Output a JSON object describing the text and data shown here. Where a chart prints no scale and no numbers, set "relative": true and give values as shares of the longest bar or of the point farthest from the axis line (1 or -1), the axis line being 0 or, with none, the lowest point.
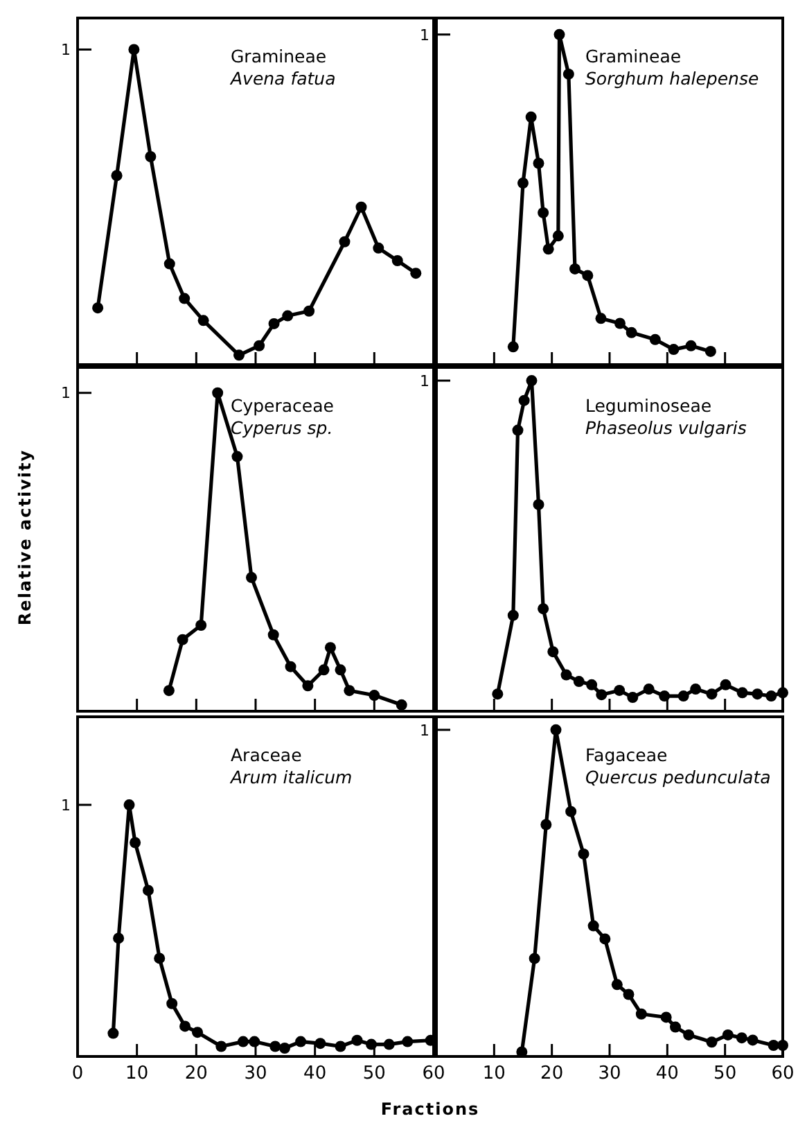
{
  "chart_data": [
    {
      "type": "line",
      "relative": true,
      "title": "Gramineae",
      "subtitle": "Avena fatua",
      "annotations": [
        "1"
      ],
      "color": "#000000",
      "marker": "circle",
      "tick_labels": "y",
      "xlim": [
        0,
        60
      ],
      "xticks": [
        0,
        10,
        20,
        30,
        40,
        50,
        60
      ],
      "x": [
        3.4,
        6.6,
        9.5,
        12.3,
        15.5,
        18,
        21.2,
        27.2,
        30.6,
        33.1,
        35.4,
        39,
        45,
        47.8,
        50.7,
        53.9,
        57
      ],
      "values": [
        0.18,
        0.6,
        1.0,
        0.66,
        0.32,
        0.21,
        0.14,
        0.03,
        0.06,
        0.13,
        0.155,
        0.17,
        0.39,
        0.5,
        0.37,
        0.33,
        0.29
      ]
    },
    {
      "type": "line",
      "relative": true,
      "title": "Gramineae",
      "subtitle": "Sorghum halepense",
      "annotations": [
        "1"
      ],
      "color": "#000000",
      "marker": "circle",
      "tick_labels": "y",
      "xlim": [
        0,
        60
      ],
      "xticks": [
        10,
        20,
        30,
        40,
        50,
        60
      ],
      "x": [
        13.3,
        15,
        16.4,
        17.7,
        18.5,
        19.4,
        21.1,
        21.3,
        22.9,
        24,
        26.2,
        28.5,
        31.8,
        33.8,
        37.9,
        41.1,
        44.1,
        47.5
      ],
      "values": [
        0.054,
        0.55,
        0.75,
        0.61,
        0.46,
        0.35,
        0.39,
        1.0,
        0.88,
        0.29,
        0.27,
        0.14,
        0.125,
        0.097,
        0.076,
        0.046,
        0.057,
        0.04
      ]
    },
    {
      "type": "line",
      "relative": true,
      "title": "Cyperaceae",
      "subtitle": "Cyperus sp.",
      "ylabel": "Relative activity",
      "annotations": [
        "1"
      ],
      "color": "#000000",
      "marker": "circle",
      "tick_labels": "y",
      "xlim": [
        0,
        60
      ],
      "xticks": [
        0,
        10,
        20,
        30,
        40,
        50,
        60
      ],
      "x": [
        15.4,
        17.7,
        20.8,
        23.6,
        26.9,
        29.3,
        33,
        35.9,
        38.8,
        41.5,
        42.6,
        44.3,
        45.8,
        50,
        54.6
      ],
      "values": [
        0.065,
        0.225,
        0.27,
        1.0,
        0.8,
        0.42,
        0.24,
        0.14,
        0.08,
        0.13,
        0.2,
        0.13,
        0.065,
        0.05,
        0.02
      ]
    },
    {
      "type": "line",
      "relative": true,
      "title": "Leguminoseae",
      "subtitle": "Phaseolus vulgaris",
      "annotations": [
        "1"
      ],
      "color": "#000000",
      "marker": "circle",
      "tick_labels": "y",
      "xlim": [
        0,
        60
      ],
      "xticks": [
        10,
        20,
        30,
        40,
        50,
        60
      ],
      "x": [
        10.6,
        13.3,
        14.1,
        15.2,
        16.5,
        17.7,
        18.5,
        20.2,
        22.5,
        24.7,
        26.9,
        28.6,
        31.7,
        34,
        36.8,
        39.5,
        42.8,
        44.9,
        47.7,
        50.1,
        53,
        55.6,
        58,
        60
      ],
      "values": [
        0.052,
        0.29,
        0.85,
        0.94,
        1.0,
        0.625,
        0.31,
        0.18,
        0.11,
        0.09,
        0.08,
        0.05,
        0.063,
        0.042,
        0.067,
        0.046,
        0.046,
        0.067,
        0.052,
        0.08,
        0.056,
        0.052,
        0.046,
        0.056
      ]
    },
    {
      "type": "line",
      "relative": true,
      "title": "Araceae",
      "subtitle": "Arum italicum",
      "annotations": [
        "1"
      ],
      "color": "#000000",
      "marker": "circle",
      "xlim": [
        0,
        60
      ],
      "xticks": [
        0,
        10,
        20,
        30,
        40,
        50,
        60
      ],
      "x": [
        6,
        6.9,
        8.7,
        9.7,
        11.9,
        13.8,
        15.9,
        18.1,
        20.2,
        24.2,
        27.9,
        29.8,
        33.3,
        34.9,
        37.6,
        40.9,
        44.3,
        47.1,
        49.5,
        52.5,
        55.6,
        59.5
      ],
      "values": [
        0.092,
        0.47,
        1.0,
        0.85,
        0.66,
        0.39,
        0.21,
        0.12,
        0.096,
        0.04,
        0.059,
        0.059,
        0.04,
        0.033,
        0.059,
        0.052,
        0.04,
        0.064,
        0.048,
        0.048,
        0.059,
        0.064
      ]
    },
    {
      "type": "line",
      "relative": true,
      "title": "Fagaceae",
      "subtitle": "Quercus pedunculata",
      "xlabel": "Fractions",
      "annotations": [
        "1"
      ],
      "color": "#000000",
      "marker": "circle",
      "xlim": [
        0,
        60
      ],
      "xticks": [
        10,
        20,
        30,
        40,
        50,
        60
      ],
      "x": [
        14.8,
        17,
        19,
        20.7,
        23.3,
        25.5,
        27.2,
        29.2,
        31.3,
        33.3,
        35.5,
        39.8,
        41.4,
        43.7,
        47.7,
        50.5,
        52.9,
        54.8,
        58.4,
        60
      ],
      "values": [
        0.014,
        0.3,
        0.71,
        1.0,
        0.75,
        0.62,
        0.4,
        0.36,
        0.22,
        0.19,
        0.13,
        0.12,
        0.09,
        0.066,
        0.044,
        0.066,
        0.057,
        0.05,
        0.034,
        0.034
      ]
    }
  ]
}
